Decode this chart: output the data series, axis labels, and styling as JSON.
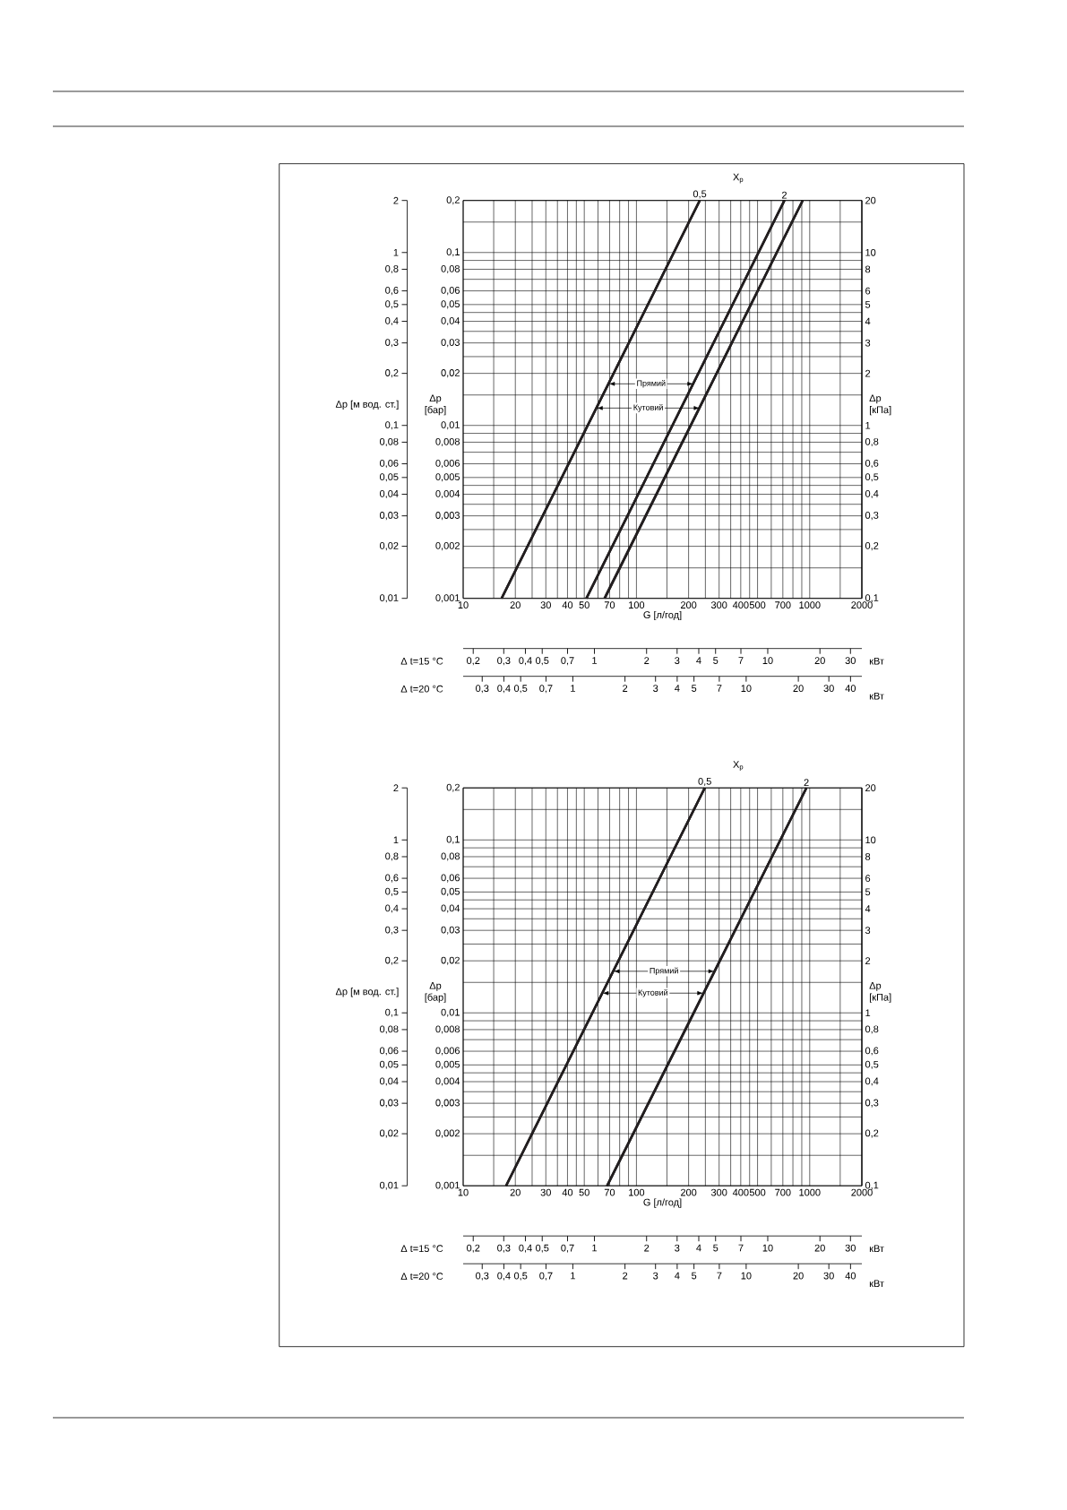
{
  "chart_data": [
    {
      "type": "line",
      "legend_title": "X$_{p}$",
      "xlabel": "G [л/год]",
      "ylabel": "Δp [бар]",
      "log": "xy",
      "grid": true,
      "xlim": [
        10,
        2000
      ],
      "ylim": [
        0.001,
        0.2
      ],
      "xticks": [
        10,
        {
          "value": 15,
          "label": null
        },
        20,
        {
          "value": 25,
          "label": null
        },
        30,
        {
          "value": 35,
          "label": null
        },
        40,
        {
          "value": 45,
          "label": null
        },
        50,
        {
          "value": 60,
          "label": null
        },
        70,
        {
          "value": 80,
          "label": null
        },
        {
          "value": 90,
          "label": null
        },
        100,
        {
          "value": 150,
          "label": null
        },
        200,
        {
          "value": 250,
          "label": null
        },
        300,
        {
          "value": 350,
          "label": null
        },
        400,
        {
          "value": 450,
          "label": null
        },
        500,
        {
          "value": 600,
          "label": null
        },
        700,
        {
          "value": 800,
          "label": null
        },
        {
          "value": 900,
          "label": null
        },
        1000,
        {
          "value": 1500,
          "label": null
        },
        2000
      ],
      "yticks": [
        {
          "value": 0.001,
          "label": "0,001"
        },
        {
          "value": 0.0015,
          "label": null
        },
        {
          "value": 0.002,
          "label": "0,002"
        },
        {
          "value": 0.0025,
          "label": null
        },
        {
          "value": 0.003,
          "label": "0,003"
        },
        {
          "value": 0.0035,
          "label": null
        },
        {
          "value": 0.004,
          "label": "0,004"
        },
        {
          "value": 0.0045,
          "label": null
        },
        {
          "value": 0.005,
          "label": "0,005"
        },
        {
          "value": 0.006,
          "label": "0,006"
        },
        {
          "value": 0.007,
          "label": null
        },
        {
          "value": 0.008,
          "label": "0,008"
        },
        {
          "value": 0.009,
          "label": null
        },
        {
          "value": 0.01,
          "label": "0,01"
        },
        {
          "value": 0.015,
          "label": null
        },
        {
          "value": 0.02,
          "label": "0,02"
        },
        {
          "value": 0.025,
          "label": null
        },
        {
          "value": 0.03,
          "label": "0,03"
        },
        {
          "value": 0.035,
          "label": null
        },
        {
          "value": 0.04,
          "label": "0,04"
        },
        {
          "value": 0.045,
          "label": null
        },
        {
          "value": 0.05,
          "label": "0,05"
        },
        {
          "value": 0.06,
          "label": "0,06"
        },
        {
          "value": 0.07,
          "label": null
        },
        {
          "value": 0.08,
          "label": "0,08"
        },
        {
          "value": 0.09,
          "label": null
        },
        {
          "value": 0.1,
          "label": "0,1"
        },
        {
          "value": 0.15,
          "label": null
        },
        {
          "value": 0.2,
          "label": "0,2"
        }
      ],
      "series": [
        {
          "name": "0,5",
          "color": "#231f20",
          "x": [
            16.7,
            232
          ],
          "values": [
            0.001,
            0.2
          ]
        },
        {
          "name": "2",
          "color": "#231f20",
          "x": [
            51.4,
            714
          ],
          "values": [
            0.001,
            0.2
          ]
        },
        {
          "color": "#231f20",
          "x": [
            65.6,
            912
          ],
          "values": [
            0.001,
            0.2
          ]
        }
      ],
      "annotations": [
        {
          "text": "Прямий",
          "x": 214,
          "y": 0.0174
        },
        {
          "text": "Кутовий",
          "x": 233,
          "y": 0.0126
        }
      ]
    },
    {
      "type": "line",
      "xlabel": "Δ t=15 °C",
      "ylabel": "Δp [кПа]",
      "log": "xy",
      "xlim": [
        0.175,
        34.9
      ],
      "ylim": [
        0.1,
        20
      ],
      "xticks": [
        {
          "value": 0.2,
          "label": "0,2"
        },
        {
          "value": 0.3,
          "label": "0,3"
        },
        {
          "value": 0.4,
          "label": "0,4"
        },
        {
          "value": 0.5,
          "label": "0,5"
        },
        {
          "value": 0.7,
          "label": "0,7"
        },
        1,
        2,
        3,
        4,
        5,
        7,
        10,
        20,
        30
      ],
      "yticks": [
        {
          "value": 0.1,
          "label": "0,1"
        },
        {
          "value": 0.2,
          "label": "0,2"
        },
        {
          "value": 0.3,
          "label": "0,3"
        },
        {
          "value": 0.4,
          "label": "0,4"
        },
        {
          "value": 0.5,
          "label": "0,5"
        },
        {
          "value": 0.6,
          "label": "0,6"
        },
        {
          "value": 0.8,
          "label": "0,8"
        },
        1,
        2,
        3,
        4,
        5,
        6,
        8,
        10,
        20
      ],
      "series": [
        {
          "color": "#231f20",
          "x": [
            0.291,
            4.05
          ],
          "values": [
            0.1,
            20
          ]
        },
        {
          "color": "#231f20",
          "x": [
            0.897,
            12.5
          ],
          "values": [
            0.1,
            20
          ]
        },
        {
          "color": "#231f20",
          "x": [
            1.14,
            15.9
          ],
          "values": [
            0.1,
            20
          ]
        }
      ],
      "annotations": [
        "кВт"
      ]
    },
    {
      "type": "line",
      "xlabel": "Δ t=20 °C",
      "ylabel": "Δp [м вод. ст.]",
      "log": "xy",
      "xlim": [
        0.233,
        46.5
      ],
      "ylim": [
        0.01,
        2
      ],
      "xticks": [
        {
          "value": 0.3,
          "label": "0,3"
        },
        {
          "value": 0.4,
          "label": "0,4"
        },
        {
          "value": 0.5,
          "label": "0,5"
        },
        {
          "value": 0.7,
          "label": "0,7"
        },
        1,
        2,
        3,
        4,
        5,
        7,
        10,
        20,
        30,
        40
      ],
      "yticks": [
        {
          "value": 0.01,
          "label": "0,01"
        },
        {
          "value": 0.02,
          "label": "0,02"
        },
        {
          "value": 0.03,
          "label": "0,03"
        },
        {
          "value": 0.04,
          "label": "0,04"
        },
        {
          "value": 0.05,
          "label": "0,05"
        },
        {
          "value": 0.06,
          "label": "0,06"
        },
        {
          "value": 0.08,
          "label": "0,08"
        },
        {
          "value": 0.1,
          "label": "0,1"
        },
        {
          "value": 0.2,
          "label": "0,2"
        },
        {
          "value": 0.3,
          "label": "0,3"
        },
        {
          "value": 0.4,
          "label": "0,4"
        },
        {
          "value": 0.5,
          "label": "0,5"
        },
        {
          "value": 0.6,
          "label": "0,6"
        },
        {
          "value": 0.8,
          "label": "0,8"
        },
        1,
        2
      ],
      "series": [
        {
          "color": "#231f20",
          "x": [
            0.388,
            5.4
          ],
          "values": [
            0.01,
            2
          ]
        },
        {
          "color": "#231f20",
          "x": [
            1.2,
            16.6
          ],
          "values": [
            0.01,
            2
          ]
        },
        {
          "color": "#231f20",
          "x": [
            1.53,
            21.2
          ],
          "values": [
            0.01,
            2
          ]
        }
      ],
      "annotations": [
        "кВт"
      ]
    },
    {
      "type": "line",
      "legend_title": "X$_{p}$",
      "xlabel": "G [л/год]",
      "ylabel": "Δp [бар]",
      "log": "xy",
      "grid": true,
      "xlim": [
        10,
        2000
      ],
      "ylim": [
        0.001,
        0.2
      ],
      "xticks": [
        10,
        {
          "value": 15,
          "label": null
        },
        20,
        {
          "value": 25,
          "label": null
        },
        30,
        {
          "value": 35,
          "label": null
        },
        40,
        {
          "value": 45,
          "label": null
        },
        50,
        {
          "value": 60,
          "label": null
        },
        70,
        {
          "value": 80,
          "label": null
        },
        {
          "value": 90,
          "label": null
        },
        100,
        {
          "value": 150,
          "label": null
        },
        200,
        {
          "value": 250,
          "label": null
        },
        300,
        {
          "value": 350,
          "label": null
        },
        400,
        {
          "value": 450,
          "label": null
        },
        500,
        {
          "value": 600,
          "label": null
        },
        700,
        {
          "value": 800,
          "label": null
        },
        {
          "value": 900,
          "label": null
        },
        1000,
        {
          "value": 1500,
          "label": null
        },
        2000
      ],
      "yticks": [
        {
          "value": 0.001,
          "label": "0,001"
        },
        {
          "value": 0.0015,
          "label": null
        },
        {
          "value": 0.002,
          "label": "0,002"
        },
        {
          "value": 0.0025,
          "label": null
        },
        {
          "value": 0.003,
          "label": "0,003"
        },
        {
          "value": 0.0035,
          "label": null
        },
        {
          "value": 0.004,
          "label": "0,004"
        },
        {
          "value": 0.0045,
          "label": null
        },
        {
          "value": 0.005,
          "label": "0,005"
        },
        {
          "value": 0.006,
          "label": "0,006"
        },
        {
          "value": 0.007,
          "label": null
        },
        {
          "value": 0.008,
          "label": "0,008"
        },
        {
          "value": 0.009,
          "label": null
        },
        {
          "value": 0.01,
          "label": "0,01"
        },
        {
          "value": 0.015,
          "label": null
        },
        {
          "value": 0.02,
          "label": "0,02"
        },
        {
          "value": 0.025,
          "label": null
        },
        {
          "value": 0.03,
          "label": "0,03"
        },
        {
          "value": 0.035,
          "label": null
        },
        {
          "value": 0.04,
          "label": "0,04"
        },
        {
          "value": 0.045,
          "label": null
        },
        {
          "value": 0.05,
          "label": "0,05"
        },
        {
          "value": 0.06,
          "label": "0,06"
        },
        {
          "value": 0.07,
          "label": null
        },
        {
          "value": 0.08,
          "label": "0,08"
        },
        {
          "value": 0.09,
          "label": null
        },
        {
          "value": 0.1,
          "label": "0,1"
        },
        {
          "value": 0.15,
          "label": null
        },
        {
          "value": 0.2,
          "label": "0,2"
        }
      ],
      "series": [
        {
          "name": "0,5",
          "color": "#231f20",
          "x": [
            17.7,
            248
          ],
          "values": [
            0.001,
            0.2
          ]
        },
        {
          "name": "2",
          "color": "#231f20",
          "x": [
            67.8,
            957
          ],
          "values": [
            0.001,
            0.2
          ]
        }
      ],
      "annotations": [
        {
          "text": "Прямий",
          "x": 283,
          "y": 0.0174
        },
        {
          "text": "Кутовий",
          "x": 244,
          "y": 0.013
        }
      ]
    },
    {
      "type": "line",
      "xlabel": "Δ t=15 °C",
      "ylabel": "Δp [кПа]",
      "log": "xy",
      "xlim": [
        0.175,
        34.9
      ],
      "ylim": [
        0.1,
        20
      ],
      "xticks": [
        {
          "value": 0.2,
          "label": "0,2"
        },
        {
          "value": 0.3,
          "label": "0,3"
        },
        {
          "value": 0.4,
          "label": "0,4"
        },
        {
          "value": 0.5,
          "label": "0,5"
        },
        {
          "value": 0.7,
          "label": "0,7"
        },
        1,
        2,
        3,
        4,
        5,
        7,
        10,
        20,
        30
      ],
      "yticks": [
        {
          "value": 0.1,
          "label": "0,1"
        },
        {
          "value": 0.2,
          "label": "0,2"
        },
        {
          "value": 0.3,
          "label": "0,3"
        },
        {
          "value": 0.4,
          "label": "0,4"
        },
        {
          "value": 0.5,
          "label": "0,5"
        },
        {
          "value": 0.6,
          "label": "0,6"
        },
        {
          "value": 0.8,
          "label": "0,8"
        },
        1,
        2,
        3,
        4,
        5,
        6,
        8,
        10,
        20
      ],
      "series": [
        {
          "color": "#231f20",
          "x": [
            0.309,
            4.33
          ],
          "values": [
            0.1,
            20
          ]
        },
        {
          "color": "#231f20",
          "x": [
            1.18,
            16.7
          ],
          "values": [
            0.1,
            20
          ]
        }
      ],
      "annotations": [
        "кВт"
      ]
    },
    {
      "type": "line",
      "xlabel": "Δ t=20 °C",
      "ylabel": "Δp [м вод. ст.]",
      "log": "xy",
      "xlim": [
        0.233,
        46.5
      ],
      "ylim": [
        0.01,
        2
      ],
      "xticks": [
        {
          "value": 0.3,
          "label": "0,3"
        },
        {
          "value": 0.4,
          "label": "0,4"
        },
        {
          "value": 0.5,
          "label": "0,5"
        },
        {
          "value": 0.7,
          "label": "0,7"
        },
        1,
        2,
        3,
        4,
        5,
        7,
        10,
        20,
        30,
        40
      ],
      "yticks": [
        {
          "value": 0.01,
          "label": "0,01"
        },
        {
          "value": 0.02,
          "label": "0,02"
        },
        {
          "value": 0.03,
          "label": "0,03"
        },
        {
          "value": 0.04,
          "label": "0,04"
        },
        {
          "value": 0.05,
          "label": "0,05"
        },
        {
          "value": 0.06,
          "label": "0,06"
        },
        {
          "value": 0.08,
          "label": "0,08"
        },
        {
          "value": 0.1,
          "label": "0,1"
        },
        {
          "value": 0.2,
          "label": "0,2"
        },
        {
          "value": 0.3,
          "label": "0,3"
        },
        {
          "value": 0.4,
          "label": "0,4"
        },
        {
          "value": 0.5,
          "label": "0,5"
        },
        {
          "value": 0.6,
          "label": "0,6"
        },
        {
          "value": 0.8,
          "label": "0,8"
        },
        1,
        2
      ],
      "series": [
        {
          "color": "#231f20",
          "x": [
            0.412,
            5.77
          ],
          "values": [
            0.01,
            2
          ]
        },
        {
          "color": "#231f20",
          "x": [
            1.58,
            22.3
          ],
          "values": [
            0.01,
            2
          ]
        }
      ],
      "annotations": [
        "кВт"
      ]
    }
  ]
}
